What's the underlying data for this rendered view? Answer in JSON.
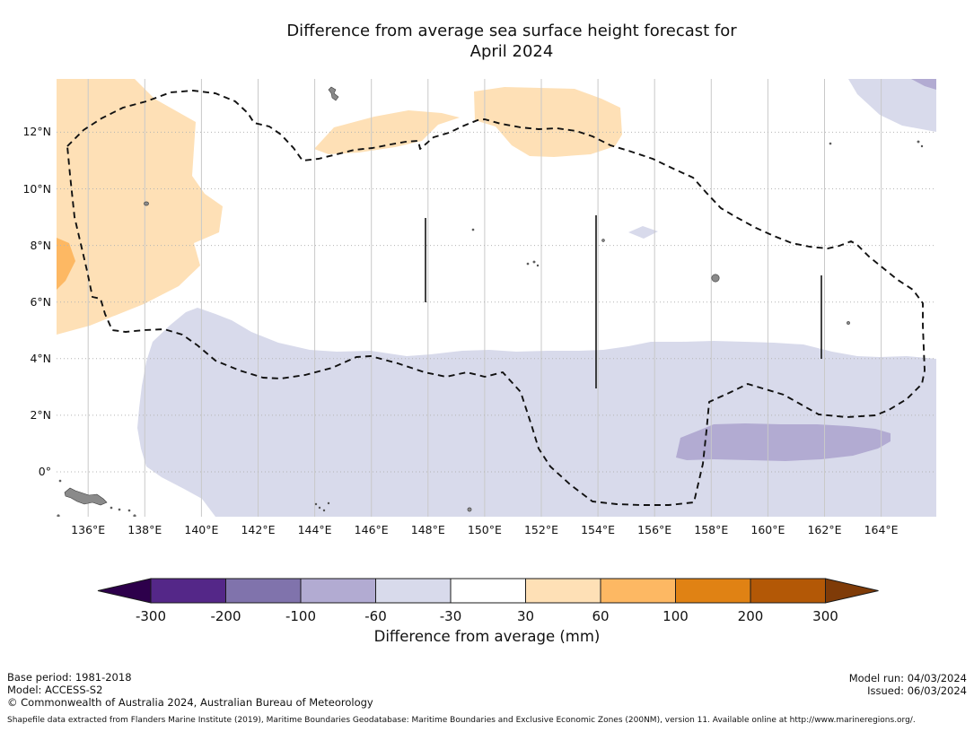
{
  "title": {
    "line1": "Difference from average sea surface height forecast for",
    "line2": "April 2024"
  },
  "map": {
    "lon_ticks": [
      {
        "label": "136°E",
        "value": 136
      },
      {
        "label": "138°E",
        "value": 138
      },
      {
        "label": "140°E",
        "value": 140
      },
      {
        "label": "142°E",
        "value": 142
      },
      {
        "label": "144°E",
        "value": 144
      },
      {
        "label": "146°E",
        "value": 146
      },
      {
        "label": "148°E",
        "value": 148
      },
      {
        "label": "150°E",
        "value": 150
      },
      {
        "label": "152°E",
        "value": 152
      },
      {
        "label": "154°E",
        "value": 154
      },
      {
        "label": "156°E",
        "value": 156
      },
      {
        "label": "158°E",
        "value": 158
      },
      {
        "label": "160°E",
        "value": 160
      },
      {
        "label": "162°E",
        "value": 162
      },
      {
        "label": "164°E",
        "value": 164
      }
    ],
    "lat_ticks": [
      {
        "label": "12°N",
        "value": 12
      },
      {
        "label": "10°N",
        "value": 10
      },
      {
        "label": "8°N",
        "value": 8
      },
      {
        "label": "6°N",
        "value": 6
      },
      {
        "label": "4°N",
        "value": 4
      },
      {
        "label": "2°N",
        "value": 2
      },
      {
        "label": "0°",
        "value": 0
      }
    ]
  },
  "colorbar": {
    "title": "Difference from average (mm)",
    "tick_labels": [
      "-300",
      "-200",
      "-100",
      "-60",
      "-30",
      "30",
      "60",
      "100",
      "200",
      "300"
    ],
    "colors": [
      "#2d004b",
      "#542788",
      "#8073ac",
      "#b2abd2",
      "#d8daeb",
      "#ffffff",
      "#fee0b6",
      "#fdb863",
      "#e08214",
      "#b35806",
      "#7f3b08"
    ]
  },
  "palette": {
    "pos_30_60": "#fee0b6",
    "pos_60_100": "#fdb863",
    "neg_30_60": "#d8daeb",
    "neg_60_100": "#b2abd2"
  },
  "footer": {
    "base_period": "Base period: 1981-2018",
    "model": "Model: ACCESS-S2",
    "copyright": "© Commonwealth of Australia 2024, Australian Bureau of Meteorology",
    "model_run": "Model run: 04/03/2024",
    "issued": "Issued: 06/03/2024",
    "attribution": "Shapefile data extracted from Flanders Marine Institute (2019), Maritime Boundaries Geodatabase: Maritime Boundaries and Exclusive Economic Zones (200NM), version 11. Available online at http://www.marineregions.org/."
  },
  "chart_data": {
    "type": "heatmap",
    "subtype": "filled-contour geographic map",
    "title": "Difference from average sea surface height forecast for April 2024",
    "xlabel_ticks": [
      "136°E",
      "138°E",
      "140°E",
      "142°E",
      "144°E",
      "146°E",
      "148°E",
      "150°E",
      "152°E",
      "154°E",
      "156°E",
      "158°E",
      "160°E",
      "162°E",
      "164°E"
    ],
    "ylabel_ticks": [
      "12°N",
      "10°N",
      "8°N",
      "6°N",
      "4°N",
      "2°N",
      "0°"
    ],
    "lon_range": [
      134.9,
      166.0
    ],
    "lat_range": [
      -1.6,
      13.9
    ],
    "grid": "on",
    "colorbar": {
      "label": "Difference from average (mm)",
      "boundaries_mm": [
        -300,
        -200,
        -100,
        -60,
        -30,
        30,
        60,
        100,
        200,
        300
      ],
      "colors": [
        "#2d004b",
        "#542788",
        "#8073ac",
        "#b2abd2",
        "#d8daeb",
        "#ffffff",
        "#fee0b6",
        "#fdb863",
        "#e08214",
        "#b35806",
        "#7f3b08"
      ],
      "extend": "both"
    },
    "anomaly_regions": [
      {
        "value_mm": "30 to 60",
        "color": "#fee0b6",
        "where": "large area in northwest, ~134.9-140.8°E from ~5.5°N to top of map"
      },
      {
        "value_mm": "60 to 100",
        "color": "#fdb863",
        "where": "small patch on left map edge near 7-8°N"
      },
      {
        "value_mm": "30 to 60",
        "color": "#fee0b6",
        "where": "lens ~145-149°E near 11.9-12.8°N"
      },
      {
        "value_mm": "30 to 60",
        "color": "#fee0b6",
        "where": "blob ~149.6-155°E near 11.2-13.4°N"
      },
      {
        "value_mm": "-60 to -30",
        "color": "#d8daeb",
        "where": "broad band covering the whole south of the map below ~4-5.8°N"
      },
      {
        "value_mm": "-100 to -60",
        "color": "#b2abd2",
        "where": "elongated patch ~156.8-164.3°E near 0.4-1.7°N"
      },
      {
        "value_mm": "-60 to -30",
        "color": "#d8daeb",
        "where": "northeast corner ~162.9-166°E above ~12°N"
      },
      {
        "value_mm": "-100 to -60",
        "color": "#b2abd2",
        "where": "extreme northeast corner"
      },
      {
        "value_mm": "-60 to -30",
        "color": "#d8daeb",
        "where": "tiny diamond near 155.6°E, 8.4°N"
      }
    ],
    "overlays": [
      "black dashed closed boundary (exclusive economic zone outline)",
      "solid vertical sector-divider lines at 148°E (6-9°N), 154°E (3-9°N) and 162°E (4-6.9°N)",
      "small gray island landmasses scattered across the map and along the bottom-left coast"
    ]
  }
}
